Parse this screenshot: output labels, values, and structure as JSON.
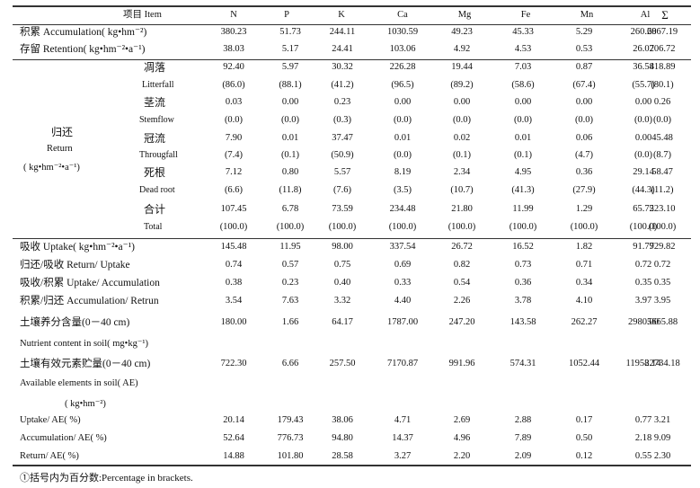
{
  "header": {
    "item": "项目 Item",
    "cols": [
      "N",
      "P",
      "K",
      "Ca",
      "Mg",
      "Fe",
      "Mn",
      "Al",
      "Σ"
    ]
  },
  "rows": [
    {
      "label": "积累 Accumulation( kg•hm⁻²)",
      "values": [
        "380.23",
        "51.73",
        "244.11",
        "1030.59",
        "49.23",
        "45.33",
        "5.29",
        "260.68",
        "2067.19"
      ]
    },
    {
      "label": "存留 Retention( kg•hm⁻²•a⁻¹)",
      "values": [
        "38.03",
        "5.17",
        "24.41",
        "103.06",
        "4.92",
        "4.53",
        "0.53",
        "26.07",
        "206.72"
      ]
    },
    {
      "label": "凋落",
      "values": [
        "92.40",
        "5.97",
        "30.32",
        "226.28",
        "19.44",
        "7.03",
        "0.87",
        "36.58",
        "418.89"
      ]
    },
    {
      "label": "Litterfall",
      "values": [
        "(86.0)",
        "(88.1)",
        "(41.2)",
        "(96.5)",
        "(89.2)",
        "(58.6)",
        "(67.4)",
        "(55.7)",
        "(80.1)"
      ]
    },
    {
      "label": "茎流",
      "values": [
        "0.03",
        "0.00",
        "0.23",
        "0.00",
        "0.00",
        "0.00",
        "0.00",
        "0.00",
        "0.26"
      ]
    },
    {
      "label": "Stemflow",
      "values": [
        "(0.0)",
        "(0.0)",
        "(0.3)",
        "(0.0)",
        "(0.0)",
        "(0.0)",
        "(0.0)",
        "(0.0)",
        "(0.0)"
      ]
    },
    {
      "label": "冠流",
      "values": [
        "7.90",
        "0.01",
        "37.47",
        "0.01",
        "0.02",
        "0.01",
        "0.06",
        "0.00",
        "45.48"
      ]
    },
    {
      "label": "Througfall",
      "values": [
        "(7.4)",
        "(0.1)",
        "(50.9)",
        "(0.0)",
        "(0.1)",
        "(0.1)",
        "(4.7)",
        "(0.0)",
        "(8.7)"
      ]
    },
    {
      "label": "死根",
      "values": [
        "7.12",
        "0.80",
        "5.57",
        "8.19",
        "2.34",
        "4.95",
        "0.36",
        "29.14",
        "58.47"
      ]
    },
    {
      "label": "Dead root",
      "values": [
        "(6.6)",
        "(11.8)",
        "(7.6)",
        "(3.5)",
        "(10.7)",
        "(41.3)",
        "(27.9)",
        "(44.3)",
        "(11.2)"
      ]
    },
    {
      "label": "合计",
      "values": [
        "107.45",
        "6.78",
        "73.59",
        "234.48",
        "21.80",
        "11.99",
        "1.29",
        "65.72",
        "523.10"
      ]
    },
    {
      "label": "Total",
      "values": [
        "(100.0)",
        "(100.0)",
        "(100.0)",
        "(100.0)",
        "(100.0)",
        "(100.0)",
        "(100.0)",
        "(100.0)",
        "(100.0)"
      ]
    },
    {
      "label": "吸收 Uptake( kg•hm⁻²•a⁻¹)",
      "values": [
        "145.48",
        "11.95",
        "98.00",
        "337.54",
        "26.72",
        "16.52",
        "1.82",
        "91.79",
        "729.82"
      ]
    },
    {
      "label": "归还/吸收 Return/ Uptake",
      "values": [
        "0.74",
        "0.57",
        "0.75",
        "0.69",
        "0.82",
        "0.73",
        "0.71",
        "0.72",
        "0.72"
      ]
    },
    {
      "label": "吸收/积累 Uptake/ Accumulation",
      "values": [
        "0.38",
        "0.23",
        "0.40",
        "0.33",
        "0.54",
        "0.36",
        "0.34",
        "0.35",
        "0.35"
      ]
    },
    {
      "label": "积累/归还 Accumulation/ Retrun",
      "values": [
        "3.54",
        "7.63",
        "3.32",
        "4.40",
        "2.26",
        "3.78",
        "4.10",
        "3.97",
        "3.95"
      ]
    },
    {
      "label": "土壤养分含量(0－40 cm)",
      "values": [
        "180.00",
        "1.66",
        "64.17",
        "1787.00",
        "247.20",
        "143.58",
        "262.27",
        "2980.00",
        "5665.88"
      ]
    },
    {
      "label": "土壤有效元素贮量(0－40 cm)",
      "values": [
        "722.30",
        "6.66",
        "257.50",
        "7170.87",
        "991.96",
        "574.31",
        "1052.44",
        "11958.14",
        "22734.18"
      ]
    },
    {
      "label": "Uptake/ AE( %)",
      "values": [
        "20.14",
        "179.43",
        "38.06",
        "4.71",
        "2.69",
        "2.88",
        "0.17",
        "0.77",
        "3.21"
      ]
    },
    {
      "label": "Accumulation/ AE( %)",
      "values": [
        "52.64",
        "776.73",
        "94.80",
        "14.37",
        "4.96",
        "7.89",
        "0.50",
        "2.18",
        "9.09"
      ]
    },
    {
      "label": "Return/ AE( %)",
      "values": [
        "14.88",
        "101.80",
        "28.58",
        "3.27",
        "2.20",
        "2.09",
        "0.12",
        "0.55",
        "2.30"
      ]
    }
  ],
  "return_group": {
    "cn": "归还",
    "en": "Return",
    "unit": "( kg•hm⁻²•a⁻¹)"
  },
  "extra_labels": {
    "soil_unit": "Nutrient content in soil( mg•kg⁻¹)",
    "ae_label": "Available elements in soil( AE)",
    "ae_unit": "( kg•hm⁻²)"
  },
  "footnote": "①括号内为百分数:Percentage in brackets."
}
